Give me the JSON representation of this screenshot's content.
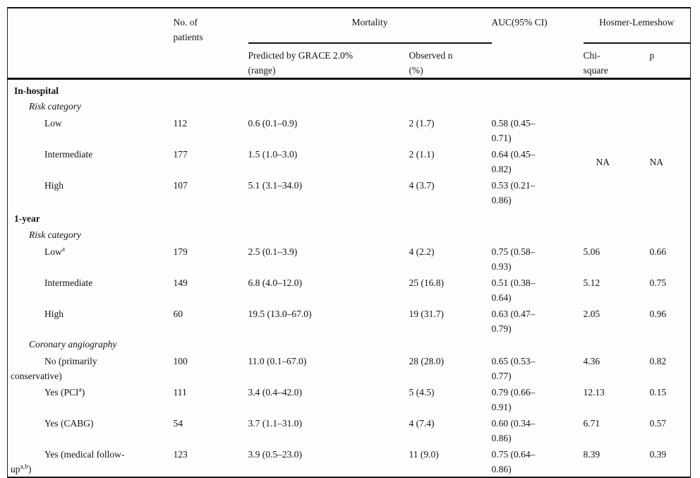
{
  "table": {
    "headers": {
      "patients": "No. of\npatients",
      "mortality": "Mortality",
      "predicted": "Predicted by GRACE 2.0%\n(range)",
      "observed": "Observed n\n(%)",
      "auc": "AUC(95% CI)",
      "hosmer": "Hosmer-Lemeshow",
      "chi_square": "Chi-\nsquare",
      "p": "p"
    },
    "rows": [
      {
        "kind": "section",
        "label": [
          {
            "t": "In-hospital"
          }
        ]
      },
      {
        "kind": "group",
        "label": [
          {
            "t": "Risk category"
          }
        ]
      },
      {
        "kind": "data",
        "label": [
          {
            "t": "Low"
          }
        ],
        "n": "112",
        "predicted": "0.6 (0.1–0.9)",
        "observed": "2 (1.7)",
        "auc": "0.58 (0.45–\n0.71)",
        "chi": "NA",
        "p": "NA"
      },
      {
        "kind": "data",
        "label": [
          {
            "t": "Intermediate"
          }
        ],
        "n": "177",
        "predicted": "1.5 (1.0–3.0)",
        "observed": "2 (1.1)",
        "auc": "0.64 (0.45–\n0.82)"
      },
      {
        "kind": "data",
        "label": [
          {
            "t": "High"
          }
        ],
        "n": "107",
        "predicted": "5.1 (3.1–34.0)",
        "observed": "4 (3.7)",
        "auc": "0.53 (0.21–\n0.86)"
      },
      {
        "kind": "section",
        "label": [
          {
            "t": "1-year"
          }
        ]
      },
      {
        "kind": "group",
        "label": [
          {
            "t": "Risk category"
          }
        ]
      },
      {
        "kind": "data",
        "label": [
          {
            "t": "Low"
          },
          {
            "t": "a",
            "sup": true
          }
        ],
        "n": "179",
        "predicted": "2.5 (0.1–3.9)",
        "observed": "4 (2.2)",
        "auc": "0.75 (0.58–\n0.93)",
        "chi": "5.06",
        "p": "0.66"
      },
      {
        "kind": "data",
        "label": [
          {
            "t": "Intermediate"
          }
        ],
        "n": "149",
        "predicted": "6.8 (4.0–12.0)",
        "observed": "25 (16.8)",
        "auc": "0.51 (0.38–\n0.64)",
        "chi": "5.12",
        "p": "0.75"
      },
      {
        "kind": "data",
        "label": [
          {
            "t": "High"
          }
        ],
        "n": "60",
        "predicted": "19.5 (13.0–67.0)",
        "observed": "19 (31.7)",
        "auc": "0.63 (0.47–\n0.79)",
        "chi": "2.05",
        "p": "0.96"
      },
      {
        "kind": "group",
        "label": [
          {
            "t": "Coronary angiography"
          }
        ]
      },
      {
        "kind": "data",
        "label": [
          {
            "t": "No (primarily"
          },
          {
            "br": true
          },
          {
            "t": "conservative)"
          }
        ],
        "n": "100",
        "predicted": "11.0 (0.1–67.0)",
        "observed": "28 (28.0)",
        "auc": "0.65 (0.53–\n0.77)",
        "chi": "4.36",
        "p": "0.82"
      },
      {
        "kind": "data",
        "label": [
          {
            "t": "Yes (PCI"
          },
          {
            "t": "a",
            "sup": true
          },
          {
            "t": ")"
          }
        ],
        "n": "111",
        "predicted": "3.4 (0.4–42.0)",
        "observed": "5 (4.5)",
        "auc": "0.79 (0.66–\n0.91)",
        "chi": "12.13",
        "p": "0.15"
      },
      {
        "kind": "data",
        "label": [
          {
            "t": "Yes (CABG)"
          }
        ],
        "n": "54",
        "predicted": "3.7 (1.1–31.0)",
        "observed": "4 (7.4)",
        "auc": "0.60 (0.34–\n0.86)",
        "chi": "6.71",
        "p": "0.57"
      },
      {
        "kind": "data",
        "label": [
          {
            "t": "Yes (medical follow-"
          },
          {
            "br": true
          },
          {
            "t": "up"
          },
          {
            "t": "a,b",
            "sup": true
          },
          {
            "t": ")"
          }
        ],
        "n": "123",
        "predicted": "3.9 (0.5–23.0)",
        "observed": "11 (9.0)",
        "auc": "0.75 (0.64–\n0.86)",
        "chi": "8.39",
        "p": "0.39"
      }
    ]
  }
}
